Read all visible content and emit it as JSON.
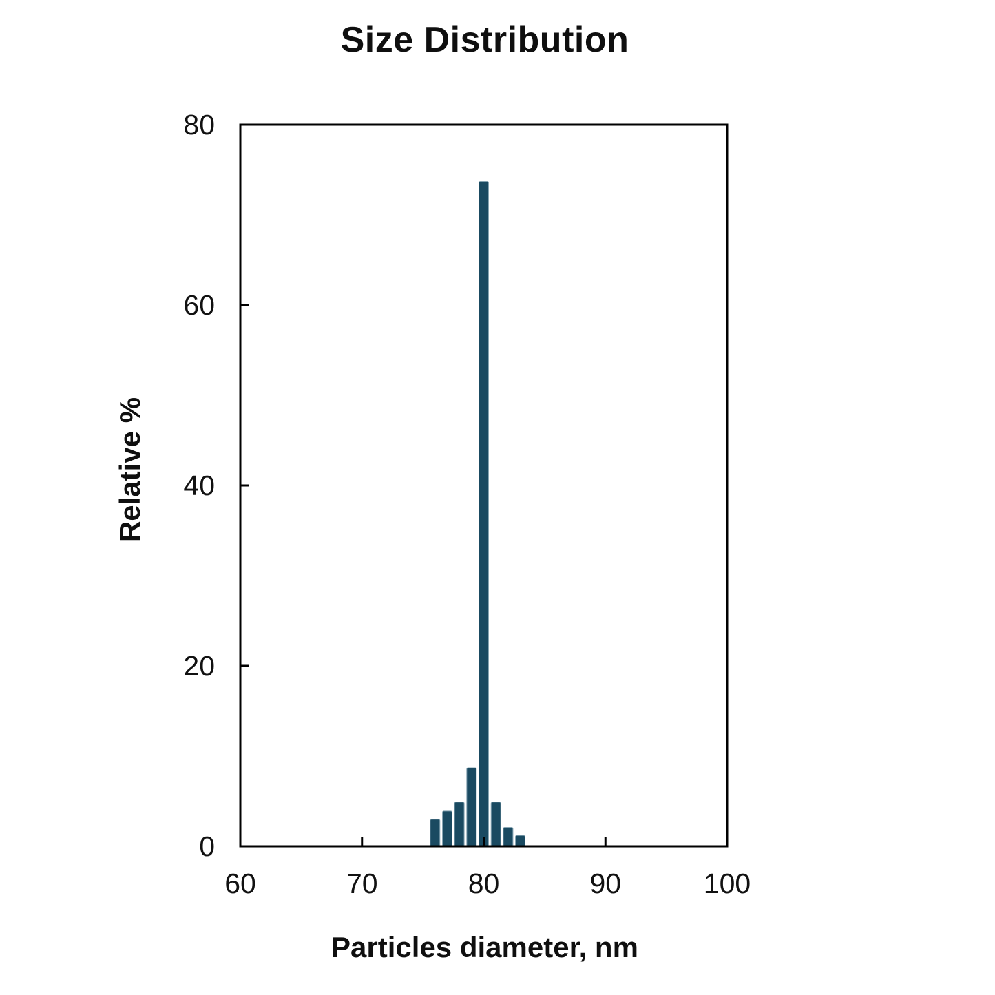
{
  "chart_data": {
    "type": "bar",
    "title": "Size Distribution",
    "xlabel": "Particles diameter, nm",
    "ylabel": "Relative %",
    "x": [
      76,
      77,
      78,
      79,
      80,
      81,
      82,
      83
    ],
    "values": [
      3.0,
      3.9,
      4.9,
      8.7,
      73.7,
      4.9,
      2.1,
      1.2
    ],
    "xlim": [
      60,
      100
    ],
    "ylim": [
      0,
      80
    ],
    "x_ticks": [
      60,
      70,
      80,
      90,
      100
    ],
    "y_ticks": [
      0,
      20,
      40,
      60,
      80
    ],
    "grid": false,
    "legend": false,
    "colors": {
      "bar_fill": "#1a4a61",
      "bar_edge": "#86a4b2",
      "axis": "#000000",
      "text": "#111111",
      "background": "#ffffff"
    }
  }
}
